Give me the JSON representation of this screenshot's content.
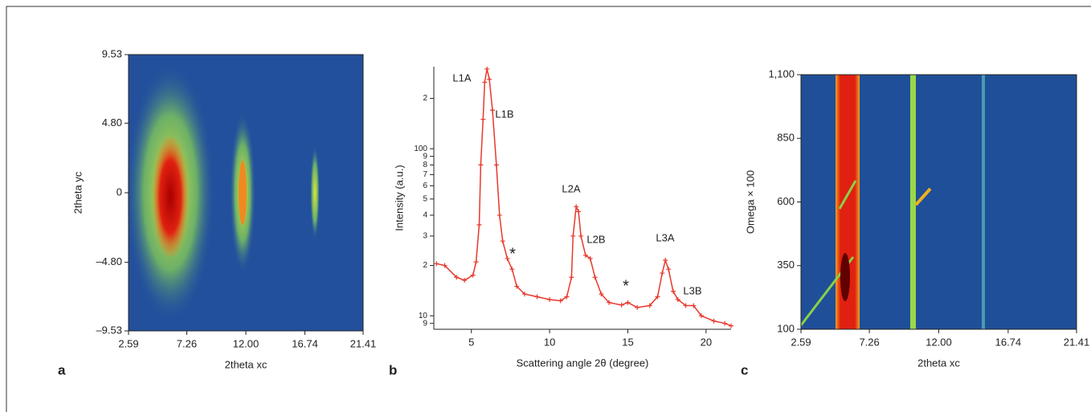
{
  "chart_data": [
    {
      "type": "image",
      "panel_label": "a",
      "xlabel": "2theta xc",
      "ylabel": "2theta yc",
      "xlim": [
        2.59,
        21.41
      ],
      "ylim": [
        -9.53,
        9.53
      ],
      "xticks": [
        2.59,
        7.26,
        {
          "value": 12,
          "label": "12.00"
        },
        16.74,
        21.41
      ],
      "yticks": [
        {
          "value": -9.53,
          "label": "–9.53"
        },
        {
          "value": -4.8,
          "label": "–4.80"
        },
        0,
        {
          "value": 4.8,
          "label": "4.80"
        },
        9.53
      ]
    },
    {
      "type": "line",
      "panel_label": "b",
      "xlabel": "Scattering angle 2θ (degree)",
      "ylabel": "Intensity (a.u.)",
      "log_y": true,
      "color": "#e8382c",
      "xlim": [
        2.6,
        21.6
      ],
      "ylim": [
        8.3,
        310
      ],
      "xticks": [
        5,
        10,
        15,
        20
      ],
      "yticks": [
        9,
        10,
        {
          "value": 20,
          "label": "2"
        },
        {
          "value": 30,
          "label": "3"
        },
        {
          "value": 40,
          "label": "4"
        },
        {
          "value": 50,
          "label": "5"
        },
        {
          "value": 60,
          "label": "6"
        },
        {
          "value": 70,
          "label": "7"
        },
        {
          "value": 80,
          "label": "8"
        },
        {
          "value": 90,
          "label": "9"
        },
        100,
        {
          "value": 200,
          "label": "2"
        }
      ],
      "x": [
        2.77,
        3.3,
        4.05,
        4.56,
        5.1,
        5.3,
        5.5,
        5.6,
        5.75,
        5.85,
        6.0,
        6.15,
        6.35,
        6.6,
        6.8,
        7.0,
        7.3,
        7.6,
        7.9,
        8.4,
        9.2,
        10.0,
        10.7,
        11.1,
        11.4,
        11.5,
        11.7,
        11.85,
        12.0,
        12.3,
        12.6,
        12.9,
        13.3,
        13.8,
        14.6,
        15.0,
        15.6,
        16.4,
        16.9,
        17.2,
        17.4,
        17.6,
        17.9,
        18.2,
        18.7,
        19.2,
        19.7,
        20.5,
        21.2,
        21.6
      ],
      "values": [
        20.5,
        20,
        17,
        16.3,
        17.5,
        21,
        35,
        80,
        150,
        250,
        300,
        260,
        170,
        80,
        40,
        28,
        22,
        19,
        15,
        13.5,
        13,
        12.5,
        12.3,
        13,
        17,
        30,
        45,
        42,
        30,
        23,
        22,
        17,
        13.5,
        12,
        11.6,
        12,
        11.2,
        11.5,
        13,
        18,
        21.5,
        19,
        14,
        12.5,
        11.5,
        11.5,
        10,
        9.3,
        9,
        8.7
      ],
      "annotations": [
        "L1A",
        "L1B",
        "L2A",
        "L2B",
        "L3A",
        "L3B",
        "*",
        "*"
      ]
    },
    {
      "type": "image",
      "panel_label": "c",
      "xlabel": "2theta xc",
      "ylabel": "Omega × 100",
      "xlim": [
        2.59,
        21.41
      ],
      "ylim": [
        100,
        1100
      ],
      "xticks": [
        2.59,
        7.26,
        {
          "value": 12,
          "label": "12.00"
        },
        16.74,
        21.41
      ],
      "yticks": [
        100,
        350,
        600,
        850,
        {
          "value": 1100,
          "label": "1,100"
        }
      ]
    }
  ]
}
